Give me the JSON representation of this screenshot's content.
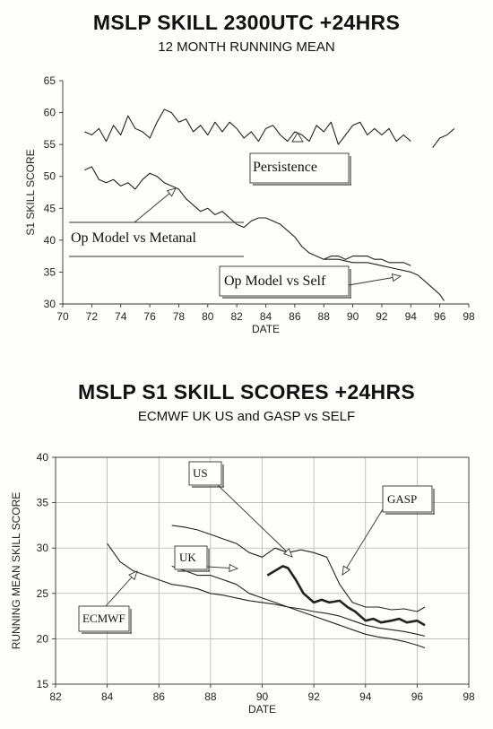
{
  "chart_data": [
    {
      "type": "line",
      "title": "MSLP SKILL 2300UTC +24HRS",
      "subtitle": "12 MONTH RUNNING MEAN",
      "xlabel": "DATE",
      "ylabel": "S1 SKILL SCORE",
      "xlim": [
        70,
        98
      ],
      "ylim": [
        30,
        65
      ],
      "xticks": [
        70,
        72,
        74,
        76,
        78,
        80,
        82,
        84,
        86,
        88,
        90,
        92,
        94,
        96,
        98
      ],
      "yticks": [
        30,
        35,
        40,
        45,
        50,
        55,
        60,
        65
      ],
      "grid": false,
      "annotations": [
        "Persistence",
        "Op Model vs Metanal",
        "Op Model vs Self"
      ],
      "series": [
        {
          "name": "Persistence",
          "x": [
            71.5,
            72.0,
            72.5,
            73.0,
            73.5,
            74.0,
            74.5,
            75.0,
            75.5,
            76.0,
            76.5,
            77.0,
            77.5,
            78.0,
            78.5,
            79.0,
            79.5,
            80.0,
            80.5,
            81.0,
            81.5,
            82.0,
            82.5,
            83.0,
            83.5,
            84.0,
            84.5,
            85.0,
            85.5,
            86.0,
            86.5,
            87.0,
            87.5,
            88.0,
            88.5,
            89.0,
            89.5,
            90.0,
            90.5,
            91.0,
            91.5,
            92.0,
            92.5,
            93.0,
            93.5,
            94.0
          ],
          "values": [
            57,
            56.5,
            57.5,
            55.5,
            58,
            56.5,
            59.5,
            57.5,
            57,
            56,
            58.5,
            60.5,
            60,
            58.5,
            59,
            57,
            58,
            56.5,
            58.5,
            57,
            58.5,
            57.5,
            56,
            57,
            55.5,
            57.5,
            58,
            56.5,
            55.5,
            57,
            56.5,
            55.5,
            58,
            57,
            58.5,
            55,
            56.5,
            58,
            58.5,
            56.5,
            57.5,
            56.5,
            57.5,
            55.5,
            56.5,
            55.5
          ]
        },
        {
          "name": "",
          "x": [
            95.5,
            96.0,
            96.5,
            97.0
          ],
          "values": [
            54.5,
            56,
            56.5,
            57.5
          ]
        },
        {
          "name": "Op Model vs Metanal",
          "x": [
            71.5,
            72.0,
            72.5,
            73.0,
            73.5,
            74.0,
            74.5,
            75.0,
            75.5,
            76.0,
            76.5,
            77.0,
            77.5,
            78.0,
            78.5,
            79.0,
            79.5,
            80.0,
            80.5,
            81.0,
            81.5,
            82.0,
            82.5,
            83.0,
            83.5,
            84.0,
            84.5,
            85.0,
            85.5,
            86.0,
            86.5,
            87.0,
            87.5,
            88.0,
            88.5,
            89.0,
            89.5,
            90.0,
            90.5,
            91.0,
            91.5,
            92.0,
            92.5,
            93.0,
            93.5,
            94.0
          ],
          "values": [
            51,
            51.5,
            49.5,
            49,
            49.5,
            48.5,
            49,
            48,
            49.5,
            50.5,
            50,
            49,
            48.5,
            48,
            46.5,
            45.5,
            44.5,
            45,
            44,
            44.5,
            43.5,
            42.5,
            42,
            43,
            43.5,
            43.5,
            43,
            42.5,
            41.5,
            40.5,
            39,
            38,
            37.5,
            37,
            37.5,
            37.5,
            37,
            37.5,
            37.5,
            37.5,
            37,
            37,
            36.5,
            36.5,
            36.5,
            36
          ]
        },
        {
          "name": "Op Model vs Self",
          "x": [
            88.0,
            89.0,
            90.0,
            91.0,
            92.0,
            93.0,
            94.0,
            94.5,
            95.0,
            95.5,
            96.0,
            96.3
          ],
          "values": [
            37,
            37,
            36.5,
            36.5,
            36,
            35.5,
            35,
            34.5,
            33.5,
            32.5,
            31.5,
            30.5
          ]
        }
      ]
    },
    {
      "type": "line",
      "title": "MSLP S1 SKILL SCORES +24HRS",
      "subtitle": "ECMWF UK US and GASP vs SELF",
      "xlabel": "DATE",
      "ylabel": "RUNNING MEAN SKILL SCORE",
      "xlim": [
        82,
        98
      ],
      "ylim": [
        15,
        40
      ],
      "xticks": [
        82,
        84,
        86,
        88,
        90,
        92,
        94,
        96,
        98
      ],
      "yticks": [
        15,
        20,
        25,
        30,
        35,
        40
      ],
      "grid": true,
      "annotations": [
        "US",
        "GASP",
        "UK",
        "ECMWF"
      ],
      "series": [
        {
          "name": "ECMWF",
          "x": [
            84.0,
            84.5,
            85.0,
            85.5,
            86.0,
            86.5,
            87.0,
            87.5,
            88.0,
            88.5,
            89.0,
            89.5,
            90.0,
            90.5,
            91.0,
            91.5,
            92.0,
            92.5,
            93.0,
            93.5,
            94.0,
            94.5,
            95.0,
            95.5,
            96.0,
            96.3
          ],
          "values": [
            30.5,
            28.5,
            27.5,
            27,
            26.5,
            26,
            25.8,
            25.5,
            25,
            24.8,
            24.5,
            24.2,
            24,
            23.8,
            23.5,
            23.3,
            23,
            22.8,
            22.5,
            22,
            21.5,
            21.2,
            21,
            20.8,
            20.5,
            20.3
          ]
        },
        {
          "name": "UK",
          "x": [
            86.5,
            87.0,
            87.5,
            88.0,
            88.5,
            89.0,
            89.5,
            90.0,
            90.5,
            91.0,
            91.5,
            92.0,
            92.5,
            93.0,
            93.5,
            94.0,
            94.5,
            95.0,
            95.5,
            96.0,
            96.3
          ],
          "values": [
            28,
            27.5,
            27,
            27,
            26.5,
            26,
            25,
            24.5,
            24,
            23.5,
            23,
            22.5,
            22,
            21.5,
            21,
            20.5,
            20.2,
            20,
            19.7,
            19.3,
            19
          ]
        },
        {
          "name": "GASP",
          "x": [
            86.5,
            87.0,
            87.5,
            88.0,
            88.5,
            89.0,
            89.5,
            90.0,
            90.5,
            91.0,
            91.5,
            92.0,
            92.5,
            93.0,
            93.5,
            94.0,
            94.5,
            95.0,
            95.5,
            96.0,
            96.3
          ],
          "values": [
            32.5,
            32.3,
            32,
            31.5,
            31,
            30.5,
            29.5,
            29,
            30,
            29.5,
            29.8,
            29.5,
            29,
            26,
            24,
            23.5,
            23.5,
            23.2,
            23.3,
            23,
            23.5
          ]
        },
        {
          "name": "US",
          "x": [
            90.2,
            90.5,
            90.8,
            91.0,
            91.3,
            91.6,
            92.0,
            92.3,
            92.6,
            93.0,
            93.3,
            93.6,
            94.0,
            94.3,
            94.6,
            95.0,
            95.3,
            95.6,
            96.0,
            96.3
          ],
          "values": [
            27,
            27.5,
            28,
            27.8,
            26.5,
            25,
            24,
            24.3,
            24,
            24.2,
            23.5,
            23,
            22,
            22.2,
            21.8,
            22,
            22.2,
            21.8,
            22,
            21.5
          ]
        }
      ]
    }
  ]
}
